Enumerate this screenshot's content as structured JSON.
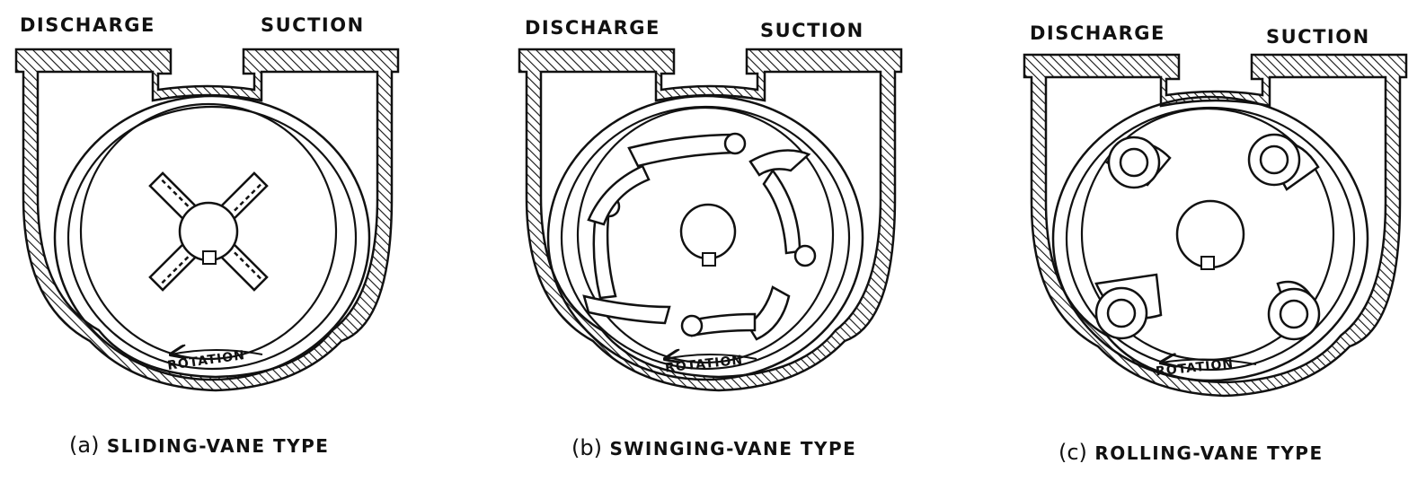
{
  "figures": [
    {
      "discharge": "DISCHARGE",
      "suction": "SUCTION",
      "rotation": "ROTATION",
      "tag": "(a)",
      "caption": "SLIDING-VANE TYPE"
    },
    {
      "discharge": "DISCHARGE",
      "suction": "SUCTION",
      "rotation": "ROTATION",
      "tag": "(b)",
      "caption": "SWINGING-VANE TYPE"
    },
    {
      "discharge": "DISCHARGE",
      "suction": "SUCTION",
      "rotation": "ROTATION",
      "tag": "(c)",
      "caption": "ROLLING-VANE TYPE"
    }
  ],
  "style": {
    "ink": "#111111",
    "paper": "#ffffff"
  }
}
